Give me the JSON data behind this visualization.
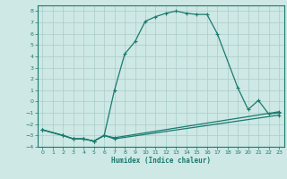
{
  "xlabel": "Humidex (Indice chaleur)",
  "background_color": "#cde8e5",
  "grid_color": "#aaccca",
  "line_color": "#1a7a6e",
  "xlim": [
    -0.5,
    23.5
  ],
  "ylim": [
    -4,
    8.5
  ],
  "xticks": [
    0,
    1,
    2,
    3,
    4,
    5,
    6,
    7,
    8,
    9,
    10,
    11,
    12,
    13,
    14,
    15,
    16,
    17,
    18,
    19,
    20,
    21,
    22,
    23
  ],
  "yticks": [
    -4,
    -3,
    -2,
    -1,
    0,
    1,
    2,
    3,
    4,
    5,
    6,
    7,
    8
  ],
  "line1_x": [
    0,
    2,
    3,
    4,
    5,
    6,
    7,
    8,
    9,
    10,
    11,
    12,
    13,
    14,
    15,
    16,
    17,
    19,
    20,
    21,
    22,
    23
  ],
  "line1_y": [
    -2.5,
    -3.0,
    -3.3,
    -3.3,
    -3.5,
    -3.0,
    1.0,
    4.2,
    5.3,
    7.1,
    7.5,
    7.8,
    8.0,
    7.8,
    7.7,
    7.7,
    6.0,
    1.2,
    -0.7,
    0.1,
    -1.1,
    -1.0
  ],
  "line2_x": [
    0,
    2,
    3,
    4,
    5,
    6,
    7,
    23
  ],
  "line2_y": [
    -2.5,
    -3.0,
    -3.3,
    -3.3,
    -3.5,
    -3.0,
    -3.3,
    -1.2
  ],
  "line3_x": [
    0,
    2,
    3,
    4,
    5,
    6,
    7,
    23
  ],
  "line3_y": [
    -2.5,
    -3.0,
    -3.3,
    -3.3,
    -3.5,
    -3.0,
    -3.2,
    -0.9
  ],
  "marker": "+"
}
